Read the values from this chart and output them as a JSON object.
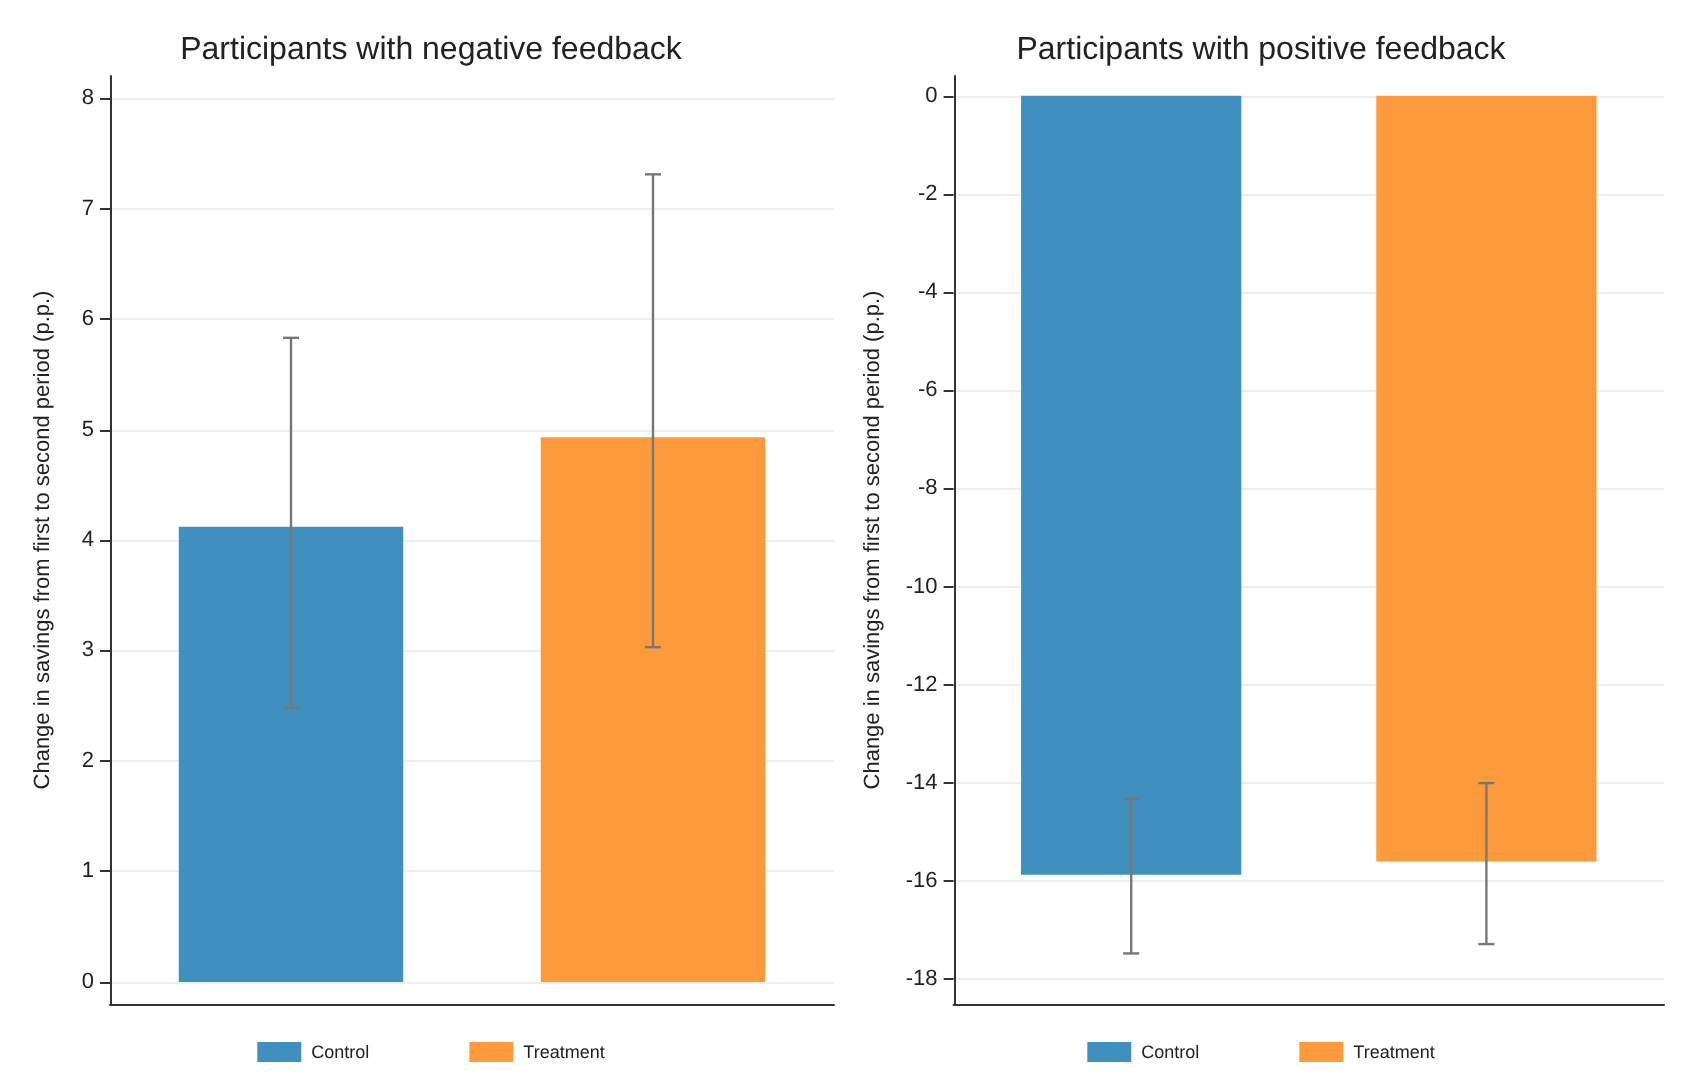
{
  "chart_data": [
    {
      "type": "bar",
      "title": "Participants with negative feedback",
      "ylabel": "Change in savings from first to second period (p.p.)",
      "categories": [
        null,
        null
      ],
      "series": [
        {
          "name": "Control",
          "color": "#3f8fbf",
          "values": [
            4.12,
            null
          ],
          "errors": [
            [
              2.48,
              5.83
            ],
            null
          ]
        },
        {
          "name": "Treatment",
          "color": "#fd9a3c",
          "values": [
            null,
            4.93
          ],
          "errors": [
            null,
            [
              3.03,
              7.31
            ]
          ]
        }
      ],
      "ylim": [
        -0.2,
        8.2
      ],
      "yticks": [
        0,
        1,
        2,
        3,
        4,
        5,
        6,
        7,
        8
      ],
      "grid": "y",
      "legend": "bottom"
    },
    {
      "type": "bar",
      "title": "Participants with positive feedback",
      "ylabel": "Change in savings from first to second period (p.p.)",
      "categories": [
        null,
        null
      ],
      "series": [
        {
          "name": "Control",
          "color": "#3f8fbf",
          "values": [
            -15.87,
            null
          ],
          "errors": [
            [
              -17.47,
              -14.32
            ],
            null
          ]
        },
        {
          "name": "Treatment",
          "color": "#fd9a3c",
          "values": [
            null,
            -15.6
          ],
          "errors": [
            null,
            [
              -17.28,
              -14.0
            ]
          ]
        }
      ],
      "ylim": [
        -18.5,
        0.4
      ],
      "yticks": [
        0,
        -2,
        -4,
        -6,
        -8,
        -10,
        -12,
        -14,
        -16,
        -18
      ],
      "grid": "y",
      "legend": "bottom"
    }
  ]
}
